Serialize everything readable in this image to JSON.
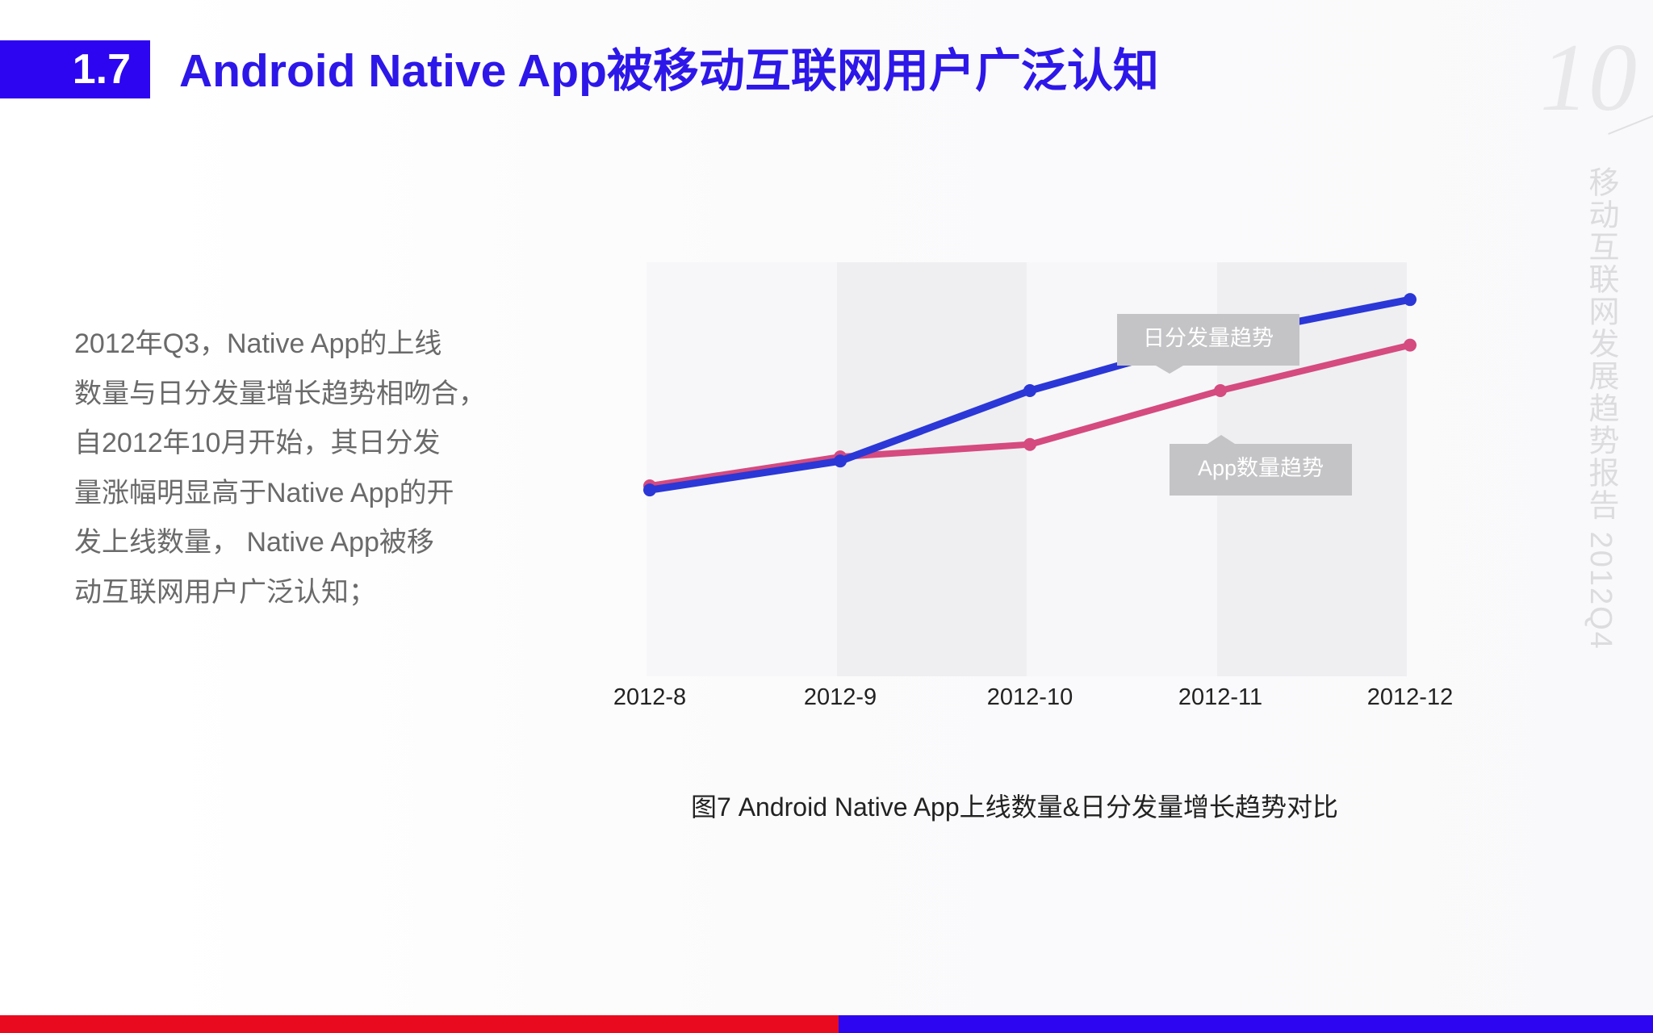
{
  "section": {
    "number": "1.7",
    "title": "Android Native App被移动互联网用户广泛认知"
  },
  "page": {
    "number": "10",
    "report_title": "移动互联网发展趋势报告 2012Q4"
  },
  "body": {
    "lines": [
      "2012年Q3，Native App的上线",
      "数量与日分发量增长趋势相吻合，",
      "自2012年10月开始，其日分发",
      "量涨幅明显高于Native App的开",
      "发上线数量， Native App被移",
      "动互联网用户广泛认知；"
    ]
  },
  "chart": {
    "caption": "图7  Android Native App上线数量&日分发量增长趋势对比"
  },
  "chart_data": {
    "type": "line",
    "x": [
      "2012-8",
      "2012-9",
      "2012-10",
      "2012-11",
      "2012-12"
    ],
    "series": [
      {
        "name": "日分发量趋势",
        "color": "#2b37d6",
        "values": [
          45,
          52,
          69,
          82,
          91
        ]
      },
      {
        "name": "App数量趋势",
        "color": "#d54a7f",
        "values": [
          46,
          53,
          56,
          69,
          80
        ]
      }
    ],
    "ylim": [
      0,
      100
    ],
    "grid": false,
    "legend": "callouts"
  },
  "colors": {
    "accent_blue": "#2d05f0",
    "title_blue": "#2d17e8",
    "footer_red": "#ea0a1f",
    "band_light": "#f7f7f9",
    "band_dark": "#efeff2",
    "callout_gray": "#c4c4c7"
  }
}
